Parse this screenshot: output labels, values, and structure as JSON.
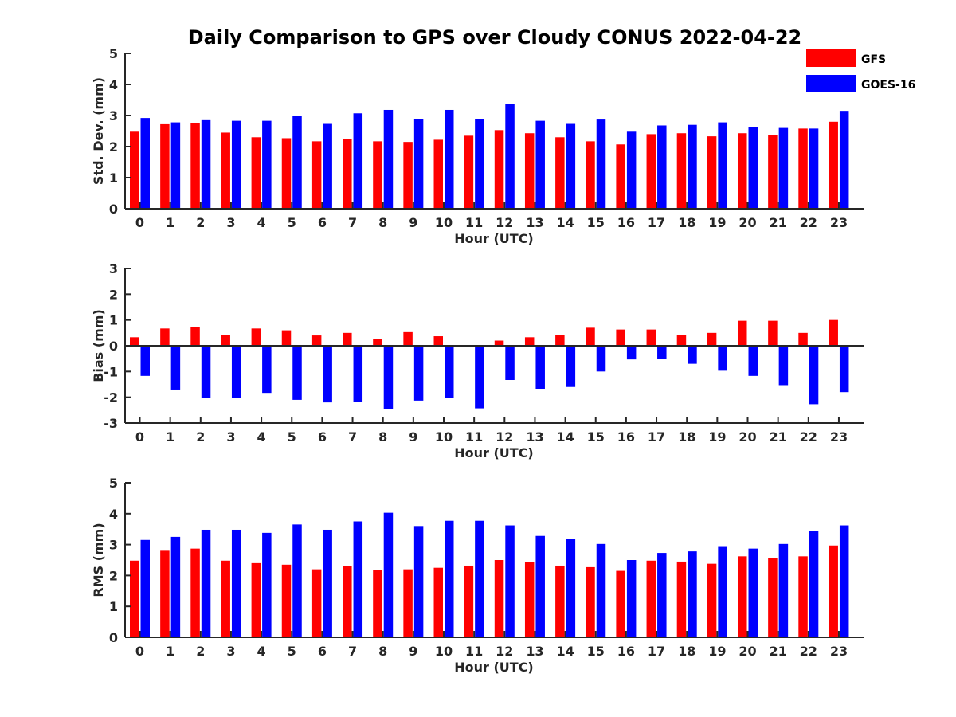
{
  "figure_title": "Daily Comparison to GPS over Cloudy CONUS 2022-04-22",
  "legend": [
    {
      "label": "GFS",
      "color": "#ff0000"
    },
    {
      "label": "GOES-16",
      "color": "#0000ff"
    }
  ],
  "chart_data": [
    {
      "type": "bar",
      "title": "Daily Comparison to GPS over Cloudy CONUS 2022-04-22",
      "xlabel": "Hour (UTC)",
      "ylabel": "Std. Dev. (mm)",
      "ylim": [
        0,
        5
      ],
      "yticks": [
        0,
        1,
        2,
        3,
        4,
        5
      ],
      "categories": [
        "0",
        "1",
        "2",
        "3",
        "4",
        "5",
        "6",
        "7",
        "8",
        "9",
        "10",
        "11",
        "12",
        "13",
        "14",
        "15",
        "16",
        "17",
        "18",
        "19",
        "20",
        "21",
        "22",
        "23"
      ],
      "series": [
        {
          "name": "GFS",
          "color": "#ff0000",
          "values": [
            2.48,
            2.72,
            2.75,
            2.45,
            2.3,
            2.27,
            2.17,
            2.25,
            2.17,
            2.15,
            2.22,
            2.35,
            2.53,
            2.43,
            2.3,
            2.17,
            2.07,
            2.4,
            2.43,
            2.33,
            2.43,
            2.38,
            2.58,
            2.8
          ]
        },
        {
          "name": "GOES-16",
          "color": "#0000ff",
          "values": [
            2.92,
            2.78,
            2.85,
            2.83,
            2.83,
            2.98,
            2.73,
            3.07,
            3.18,
            2.88,
            3.18,
            2.88,
            3.38,
            2.83,
            2.73,
            2.87,
            2.48,
            2.68,
            2.7,
            2.78,
            2.63,
            2.6,
            2.58,
            3.15
          ]
        }
      ],
      "legend_position": "top-right",
      "grid": false
    },
    {
      "type": "bar",
      "title": "",
      "xlabel": "Hour (UTC)",
      "ylabel": "Bias (mm)",
      "ylim": [
        -3,
        3
      ],
      "yticks": [
        -3,
        -2,
        -1,
        0,
        1,
        2,
        3
      ],
      "categories": [
        "0",
        "1",
        "2",
        "3",
        "4",
        "5",
        "6",
        "7",
        "8",
        "9",
        "10",
        "11",
        "12",
        "13",
        "14",
        "15",
        "16",
        "17",
        "18",
        "19",
        "20",
        "21",
        "22",
        "23"
      ],
      "series": [
        {
          "name": "GFS",
          "color": "#ff0000",
          "values": [
            0.33,
            0.67,
            0.73,
            0.43,
            0.67,
            0.6,
            0.4,
            0.5,
            0.27,
            0.53,
            0.37,
            0.03,
            0.2,
            0.33,
            0.43,
            0.7,
            0.63,
            0.63,
            0.43,
            0.5,
            0.97,
            0.97,
            0.5,
            1.0
          ]
        },
        {
          "name": "GOES-16",
          "color": "#0000ff",
          "values": [
            -1.17,
            -1.7,
            -2.03,
            -2.03,
            -1.83,
            -2.1,
            -2.2,
            -2.17,
            -2.47,
            -2.13,
            -2.03,
            -2.43,
            -1.33,
            -1.67,
            -1.6,
            -1.0,
            -0.53,
            -0.5,
            -0.7,
            -0.97,
            -1.17,
            -1.53,
            -2.27,
            -1.8
          ]
        }
      ],
      "grid": false
    },
    {
      "type": "bar",
      "title": "",
      "xlabel": "Hour (UTC)",
      "ylabel": "RMS (mm)",
      "ylim": [
        0,
        5
      ],
      "yticks": [
        0,
        1,
        2,
        3,
        4,
        5
      ],
      "categories": [
        "0",
        "1",
        "2",
        "3",
        "4",
        "5",
        "6",
        "7",
        "8",
        "9",
        "10",
        "11",
        "12",
        "13",
        "14",
        "15",
        "16",
        "17",
        "18",
        "19",
        "20",
        "21",
        "22",
        "23"
      ],
      "series": [
        {
          "name": "GFS",
          "color": "#ff0000",
          "values": [
            2.48,
            2.8,
            2.87,
            2.48,
            2.4,
            2.35,
            2.2,
            2.3,
            2.17,
            2.2,
            2.25,
            2.32,
            2.5,
            2.43,
            2.32,
            2.27,
            2.15,
            2.48,
            2.45,
            2.38,
            2.62,
            2.57,
            2.62,
            2.97
          ]
        },
        {
          "name": "GOES-16",
          "color": "#0000ff",
          "values": [
            3.15,
            3.25,
            3.48,
            3.48,
            3.38,
            3.65,
            3.48,
            3.75,
            4.03,
            3.6,
            3.77,
            3.77,
            3.62,
            3.28,
            3.17,
            3.02,
            2.5,
            2.73,
            2.78,
            2.95,
            2.87,
            3.02,
            3.43,
            3.62
          ]
        }
      ],
      "grid": false
    }
  ]
}
